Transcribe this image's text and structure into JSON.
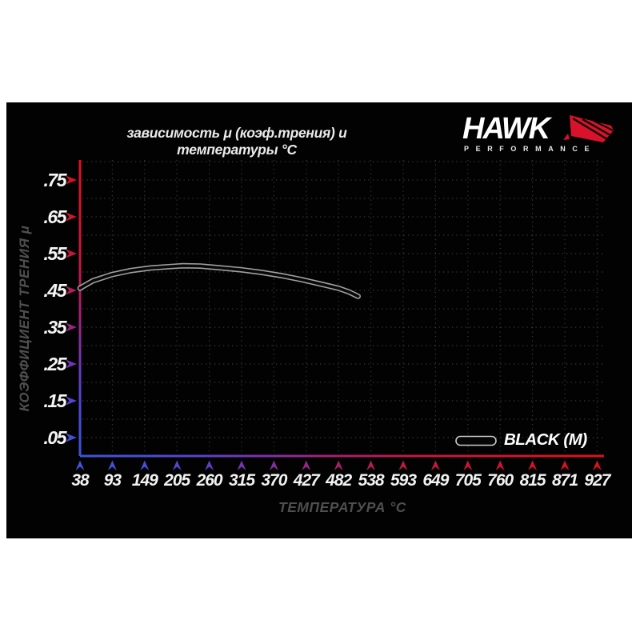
{
  "header": {
    "logo": {
      "brand": "HAWK",
      "subtitle": "PERFORMANCE",
      "accent_color": "#d8122a",
      "wing_icon": "hawk-wing-icon"
    }
  },
  "chart_data": {
    "type": "line",
    "title": "зависимость μ (коэф.трения) и температуры °C",
    "xlabel": "ТЕМПЕРАТУРА °C",
    "ylabel": "КОЭФФИЦИЕНТ ТРЕНИЯ μ",
    "x_ticks": [
      38,
      93,
      149,
      205,
      260,
      315,
      370,
      427,
      482,
      538,
      593,
      649,
      705,
      760,
      815,
      871,
      927
    ],
    "y_tick_labels": [
      ".05",
      ".15",
      ".25",
      ".35",
      ".45",
      ".55",
      ".65",
      ".75"
    ],
    "y_tick_values": [
      0.05,
      0.15,
      0.25,
      0.35,
      0.45,
      0.55,
      0.65,
      0.75
    ],
    "xlim": [
      38,
      927
    ],
    "ylim": [
      0,
      0.8
    ],
    "grid": {
      "on": true,
      "style": "dotted",
      "color": "#383838",
      "y_step": 0.05,
      "x_step": "every_tick"
    },
    "legend": {
      "label": "BLACK (M)",
      "position": "bottom-right"
    },
    "series": [
      {
        "name": "BLACK (M)",
        "points": [
          [
            38,
            0.456
          ],
          [
            60,
            0.476
          ],
          [
            93,
            0.493
          ],
          [
            125,
            0.504
          ],
          [
            160,
            0.511
          ],
          [
            195,
            0.515
          ],
          [
            215,
            0.517
          ],
          [
            245,
            0.516
          ],
          [
            275,
            0.512
          ],
          [
            315,
            0.506
          ],
          [
            350,
            0.499
          ],
          [
            385,
            0.49
          ],
          [
            420,
            0.479
          ],
          [
            455,
            0.466
          ],
          [
            482,
            0.456
          ],
          [
            500,
            0.446
          ],
          [
            516,
            0.434
          ]
        ],
        "line_color": "#070707",
        "outline_color": "#adadad"
      }
    ],
    "axis_colors": {
      "red_end": "#e01020",
      "mid_magenta": "#aa1e69",
      "mid_purple": "#872da0",
      "blue_end": "#3e52d8",
      "note": "y-axis red top to blue bottom, x-axis blue left to red right"
    }
  }
}
